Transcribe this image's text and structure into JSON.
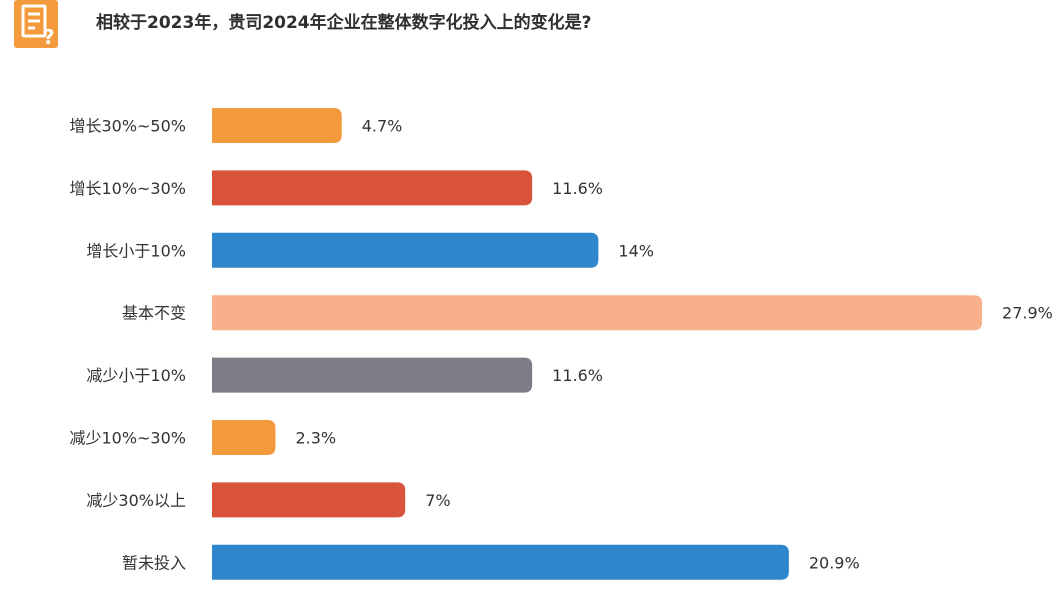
{
  "header": {
    "question": "相较于2023年，贵司2024年企业在整体数字化投入上的变化是?",
    "logo_icon": "document-question-icon"
  },
  "chart_data": {
    "type": "bar",
    "orientation": "horizontal",
    "categories": [
      "增长30%~50%",
      "增长10%~30%",
      "增长小于10%",
      "基本不变",
      "减少小于10%",
      "减少10%~30%",
      "减少30%以上",
      "暂未投入"
    ],
    "values": [
      4.7,
      11.6,
      14,
      27.9,
      11.6,
      2.3,
      7,
      20.9
    ],
    "value_labels": [
      "4.7%",
      "11.6%",
      "14%",
      "27.9%",
      "11.6%",
      "2.3%",
      "7%",
      "20.9%"
    ],
    "colors": [
      "#f39a3d",
      "#d9533a",
      "#2f86cd",
      "#f7b08a",
      "#7c7d85",
      "#f39a3d",
      "#d9533a",
      "#2f86cd"
    ],
    "grid": false,
    "title": "",
    "xlabel": "",
    "ylabel": ""
  }
}
